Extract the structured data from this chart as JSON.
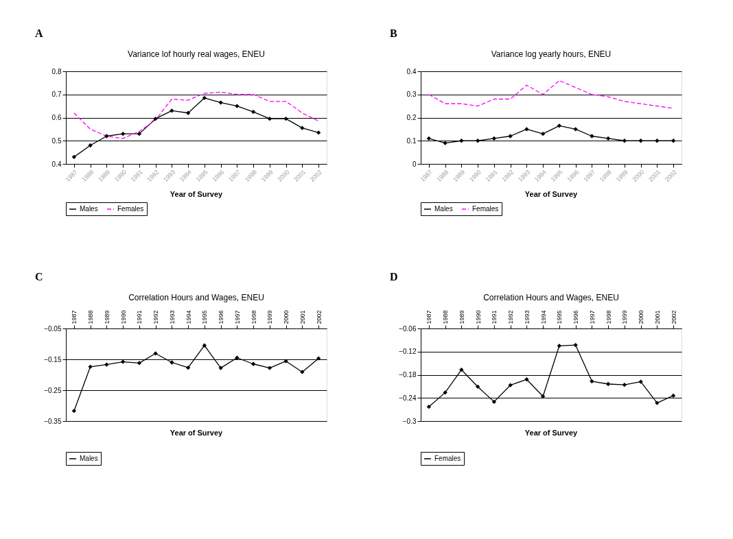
{
  "chart_data": [
    {
      "type": "line",
      "title": "Variance lof hourly real  wages, ENEU",
      "annotations": [
        "A"
      ],
      "xlabel": "Year of Survey",
      "categories": [
        "1987",
        "1988",
        "1989",
        "1990",
        "1991",
        "1992",
        "1993",
        "1994",
        "1995",
        "1996",
        "1997",
        "1998",
        "1999",
        "2000",
        "2001",
        "2002"
      ],
      "series": [
        {
          "name": "Males",
          "color": "#000000",
          "marker": "diamond",
          "line_style": "solid",
          "values": [
            0.43,
            0.48,
            0.52,
            0.53,
            0.53,
            0.595,
            0.63,
            0.62,
            0.685,
            0.665,
            0.65,
            0.625,
            0.595,
            0.595,
            0.555,
            0.535
          ]
        },
        {
          "name": "Females",
          "color": "#ff00ff",
          "marker": "none",
          "line_style": "dashed",
          "values": [
            0.62,
            0.55,
            0.52,
            0.51,
            0.54,
            0.59,
            0.68,
            0.675,
            0.705,
            0.71,
            0.7,
            0.7,
            0.67,
            0.67,
            0.62,
            0.585
          ]
        }
      ],
      "ylim": [
        0.4,
        0.8
      ],
      "yticks": [
        0.4,
        0.5,
        0.6,
        0.7,
        0.8
      ],
      "grid": "y",
      "legend": "bottom"
    },
    {
      "type": "line",
      "title": "Variance log yearly hours, ENEU",
      "annotations": [
        "B"
      ],
      "xlabel": "Year of Survey",
      "categories": [
        "1987",
        "1988",
        "1989",
        "1990",
        "1991",
        "1992",
        "1993",
        "1994",
        "1995",
        "1996",
        "1997",
        "1998",
        "1999",
        "2000",
        "2001",
        "2002"
      ],
      "series": [
        {
          "name": "Males",
          "color": "#000000",
          "marker": "diamond",
          "line_style": "solid",
          "values": [
            0.11,
            0.09,
            0.1,
            0.1,
            0.11,
            0.12,
            0.15,
            0.13,
            0.165,
            0.15,
            0.12,
            0.11,
            0.1,
            0.1,
            0.1,
            0.1
          ]
        },
        {
          "name": "Females",
          "color": "#ff00ff",
          "marker": "none",
          "line_style": "dashed",
          "values": [
            0.3,
            0.26,
            0.26,
            0.25,
            0.28,
            0.28,
            0.34,
            0.3,
            0.36,
            0.33,
            0.3,
            0.29,
            0.27,
            0.26,
            0.25,
            0.24
          ]
        }
      ],
      "ylim": [
        0,
        0.4
      ],
      "yticks": [
        0,
        0.1,
        0.2,
        0.3,
        0.4
      ],
      "grid": "y",
      "legend": "bottom"
    },
    {
      "type": "line",
      "title": "Correlation Hours and Wages, ENEU",
      "annotations": [
        "C"
      ],
      "xlabel": "Year of Survey",
      "categories": [
        "1987",
        "1988",
        "1989",
        "1990",
        "1991",
        "1992",
        "1993",
        "1994",
        "1995",
        "1996",
        "1997",
        "1998",
        "1999",
        "2000",
        "2001",
        "2002"
      ],
      "series": [
        {
          "name": "Males",
          "color": "#000000",
          "marker": "diamond",
          "line_style": "solid",
          "values": [
            -0.317,
            -0.174,
            -0.167,
            -0.158,
            -0.162,
            -0.131,
            -0.16,
            -0.177,
            -0.105,
            -0.178,
            -0.145,
            -0.165,
            -0.178,
            -0.156,
            -0.191,
            -0.147
          ]
        }
      ],
      "ylim": [
        -0.35,
        -0.05
      ],
      "yticks": [
        -0.35,
        -0.25,
        -0.15,
        -0.05
      ],
      "grid": "y",
      "legend": "bottom"
    },
    {
      "type": "line",
      "title": "Correlation Hours and Wages, ENEU",
      "annotations": [
        "D"
      ],
      "xlabel": "Year of Survey",
      "categories": [
        "1987",
        "1988",
        "1989",
        "1990",
        "1991",
        "1992",
        "1993",
        "1994",
        "1995",
        "1996",
        "1997",
        "1998",
        "1999",
        "2000",
        "2001",
        "2002"
      ],
      "series": [
        {
          "name": "Females",
          "color": "#000000",
          "marker": "diamond",
          "line_style": "solid",
          "values": [
            -0.263,
            -0.226,
            -0.167,
            -0.211,
            -0.25,
            -0.207,
            -0.192,
            -0.236,
            -0.105,
            -0.103,
            -0.197,
            -0.204,
            -0.206,
            -0.198,
            -0.253,
            -0.234
          ]
        }
      ],
      "ylim": [
        -0.3,
        -0.06
      ],
      "yticks": [
        -0.3,
        -0.24,
        -0.18,
        -0.12,
        -0.06
      ],
      "grid": "y",
      "legend": "bottom"
    }
  ]
}
